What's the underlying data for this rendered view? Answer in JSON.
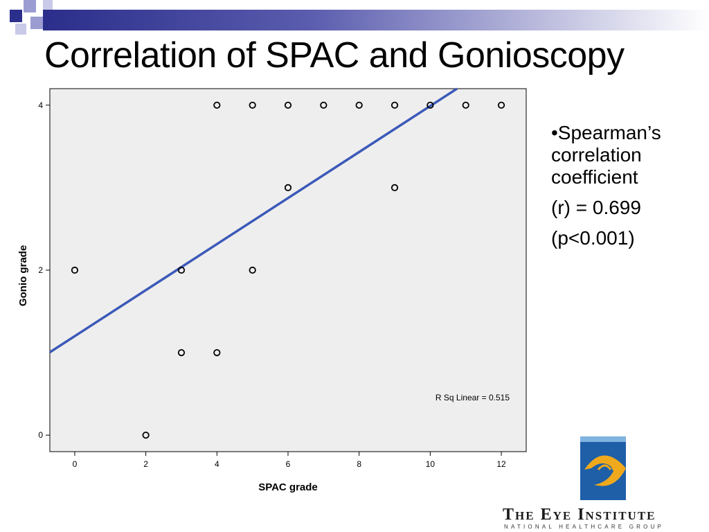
{
  "slide": {
    "title": "Correlation of SPAC and Gonioscopy",
    "stats": [
      "•Spearman’s correlation coefficient",
      "(r) = 0.699",
      "(p<0.001)"
    ],
    "logo": {
      "org_name": "The Eye Institute",
      "org_subtitle": "NATIONAL HEALTHCARE GROUP"
    },
    "colors": {
      "accent": "#2b2e8a",
      "fit_line": "#3b59b8",
      "plot_background": "#eeeeee"
    }
  },
  "chart_data": {
    "type": "scatter",
    "xlabel": "SPAC grade",
    "ylabel": "Gonio grade",
    "xlim": [
      -0.7,
      12.7
    ],
    "ylim": [
      -0.2,
      4.2
    ],
    "xticks": [
      0,
      2,
      4,
      6,
      8,
      10,
      12
    ],
    "yticks": [
      0,
      2,
      4
    ],
    "grid": false,
    "points": [
      {
        "x": 0,
        "y": 2
      },
      {
        "x": 2,
        "y": 0
      },
      {
        "x": 3,
        "y": 1
      },
      {
        "x": 3,
        "y": 2
      },
      {
        "x": 4,
        "y": 1
      },
      {
        "x": 4,
        "y": 4
      },
      {
        "x": 5,
        "y": 2
      },
      {
        "x": 5,
        "y": 4
      },
      {
        "x": 6,
        "y": 3
      },
      {
        "x": 6,
        "y": 4
      },
      {
        "x": 7,
        "y": 4
      },
      {
        "x": 8,
        "y": 4
      },
      {
        "x": 9,
        "y": 3
      },
      {
        "x": 9,
        "y": 4
      },
      {
        "x": 10,
        "y": 4
      },
      {
        "x": 11,
        "y": 4
      },
      {
        "x": 12,
        "y": 4
      }
    ],
    "fit_line": {
      "slope": 0.279,
      "intercept": 1.2
    },
    "annotation": "R Sq Linear = 0.515"
  }
}
